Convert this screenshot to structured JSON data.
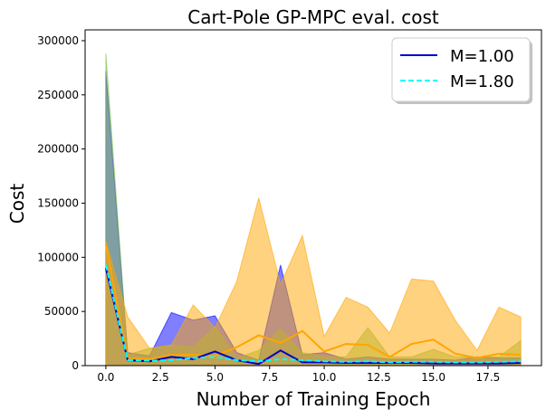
{
  "chart_data": {
    "type": "line",
    "title": "Cart-Pole GP-MPC eval. cost",
    "xlabel": "Number of Training Epoch",
    "ylabel": "Cost",
    "xlim": [
      -0.95,
      19.95
    ],
    "ylim": [
      0,
      310000
    ],
    "xticks": [
      0.0,
      2.5,
      5.0,
      7.5,
      10.0,
      12.5,
      15.0,
      17.5
    ],
    "xtick_labels": [
      "0.0",
      "2.5",
      "5.0",
      "7.5",
      "10.0",
      "12.5",
      "15.0",
      "17.5"
    ],
    "yticks": [
      0,
      50000,
      100000,
      150000,
      200000,
      250000,
      300000
    ],
    "ytick_labels": [
      "0",
      "50000",
      "100000",
      "150000",
      "200000",
      "250000",
      "300000"
    ],
    "legend_position": "top-right",
    "x": [
      0,
      1,
      2,
      3,
      4,
      5,
      6,
      7,
      8,
      9,
      10,
      11,
      12,
      13,
      14,
      15,
      16,
      17,
      18,
      19
    ],
    "series": [
      {
        "name": "M=1.00",
        "color": "#0000cc",
        "style": "solid",
        "band_color": "#0000ff",
        "values": [
          90000,
          5000,
          4000,
          8000,
          6000,
          13000,
          5000,
          1500,
          14000,
          3000,
          3000,
          2500,
          2500,
          2500,
          2500,
          2000,
          2000,
          2000,
          2000,
          2500
        ],
        "upper": [
          272000,
          12000,
          9000,
          49000,
          42000,
          46000,
          12000,
          5000,
          93000,
          10000,
          12000,
          6000,
          8000,
          6000,
          6000,
          6000,
          5000,
          8000,
          7000,
          7000
        ],
        "lower": [
          0,
          0,
          0,
          0,
          0,
          0,
          0,
          0,
          0,
          0,
          0,
          0,
          0,
          0,
          0,
          0,
          0,
          0,
          0,
          0
        ]
      },
      {
        "name": "M=1.80",
        "color": "#00ffff",
        "style": "dashed",
        "band_color": "#7fbf4a",
        "values": [
          93000,
          5000,
          4500,
          5000,
          7000,
          8000,
          5000,
          4000,
          6000,
          5000,
          4000,
          3500,
          4000,
          3000,
          3500,
          3500,
          3000,
          3000,
          3500,
          4000
        ],
        "upper": [
          288000,
          10000,
          16000,
          19000,
          17000,
          36000,
          7000,
          14000,
          34000,
          12000,
          8000,
          8000,
          35000,
          8000,
          8000,
          15000,
          8000,
          8000,
          8000,
          23000
        ],
        "lower": [
          0,
          0,
          0,
          0,
          0,
          0,
          0,
          0,
          0,
          0,
          0,
          0,
          0,
          0,
          0,
          0,
          0,
          0,
          0,
          0
        ]
      },
      {
        "color": "#ffa500",
        "style": "solid",
        "band_color": "#ffa500",
        "values": [
          112000,
          7000,
          6000,
          10000,
          10000,
          9000,
          17000,
          28000,
          21000,
          32000,
          13000,
          20000,
          19000,
          8000,
          20000,
          24000,
          11000,
          7000,
          11000,
          10000
        ],
        "upper": [
          115000,
          45000,
          16000,
          19000,
          56000,
          35000,
          78000,
          155000,
          75000,
          120000,
          27000,
          63000,
          54000,
          30000,
          80000,
          78000,
          42000,
          14000,
          54000,
          45000
        ],
        "lower": [
          0,
          0,
          0,
          0,
          0,
          0,
          0,
          0,
          0,
          0,
          0,
          0,
          0,
          0,
          0,
          0,
          0,
          0,
          0,
          0
        ]
      }
    ]
  }
}
